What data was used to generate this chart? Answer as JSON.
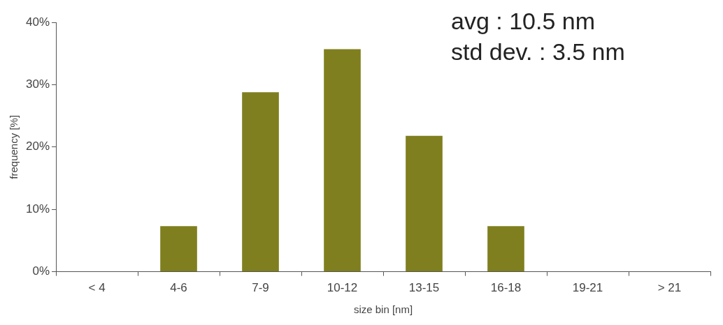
{
  "chart_data": {
    "type": "bar",
    "categories": [
      "< 4",
      "4-6",
      "7-9",
      "10-12",
      "13-15",
      "16-18",
      "19-21",
      "> 21"
    ],
    "values": [
      0,
      7.3,
      28.8,
      35.7,
      21.8,
      7.3,
      0,
      0
    ],
    "color": "#7f7f1f",
    "xlabel": "size bin [nm]",
    "ylabel": "frequency [%]",
    "ylim": [
      0,
      40
    ],
    "yticks": [
      {
        "value": 0,
        "label": "0%"
      },
      {
        "value": 10,
        "label": "10%"
      },
      {
        "value": 20,
        "label": "20%"
      },
      {
        "value": 30,
        "label": "30%"
      },
      {
        "value": 40,
        "label": "40%"
      }
    ],
    "annotations": [
      "avg : 10.5 nm",
      "std dev. : 3.5 nm"
    ],
    "grid": false,
    "legend": false
  }
}
